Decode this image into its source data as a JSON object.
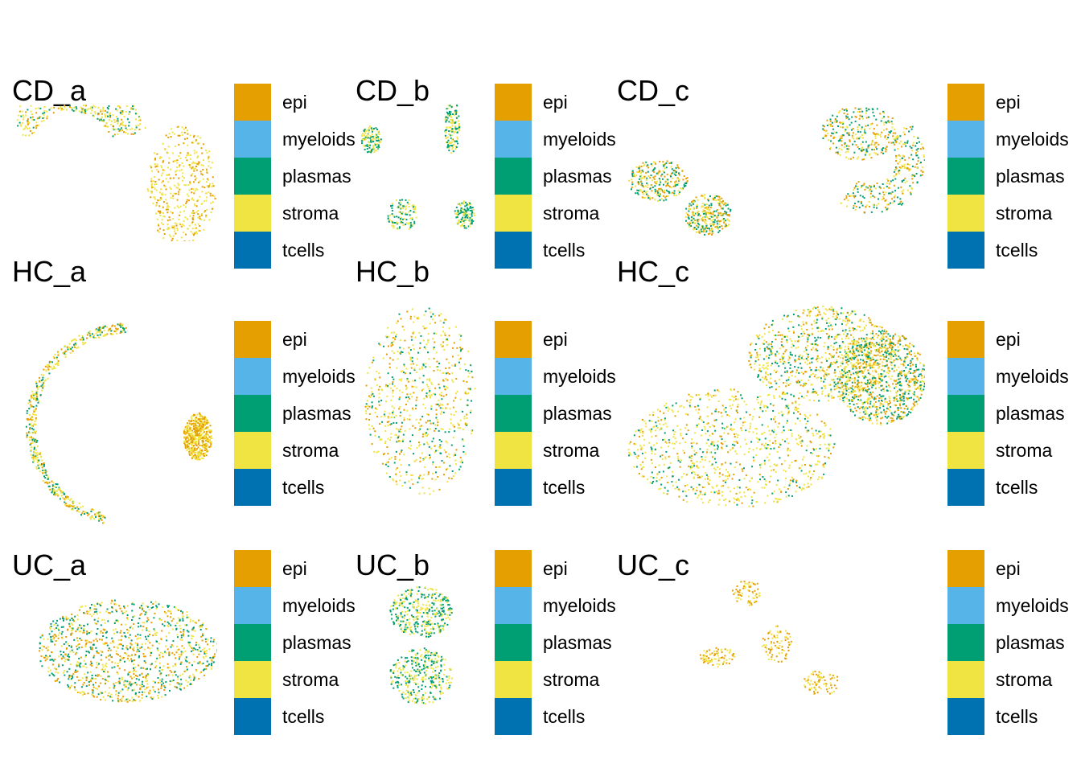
{
  "chart_data": {
    "type": "scatter",
    "description_of_marks": "spatial cell-type maps, one panel per sample",
    "legend": {
      "entries": [
        {
          "label": "epi",
          "color": "#E69F00"
        },
        {
          "label": "myeloids",
          "color": "#56B4E9"
        },
        {
          "label": "plasmas",
          "color": "#009E73"
        },
        {
          "label": "stroma",
          "color": "#F0E442"
        },
        {
          "label": "tcells",
          "color": "#0072B2"
        }
      ]
    },
    "panels": [
      {
        "title": "CD_a"
      },
      {
        "title": "CD_b"
      },
      {
        "title": "CD_c"
      },
      {
        "title": "HC_a"
      },
      {
        "title": "HC_b"
      },
      {
        "title": "HC_c"
      },
      {
        "title": "UC_a"
      },
      {
        "title": "UC_b"
      },
      {
        "title": "UC_c"
      }
    ],
    "grid": false,
    "axes_visible": false
  }
}
